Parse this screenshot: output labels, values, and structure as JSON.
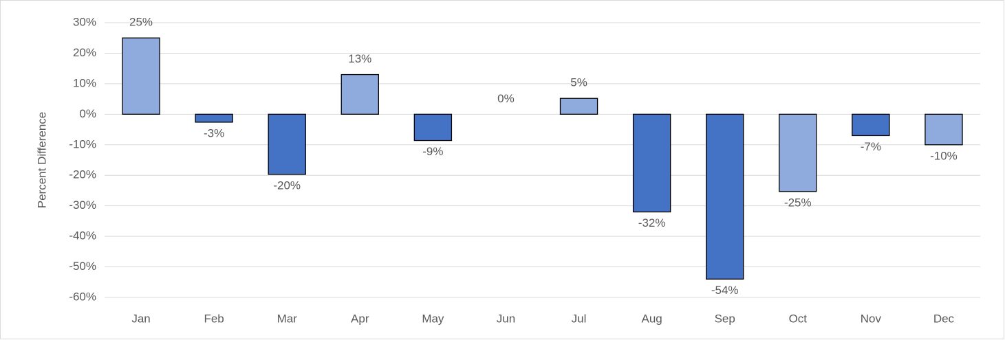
{
  "chart_data": {
    "type": "bar",
    "y_label": "Percent Difference",
    "categories": [
      "Jan",
      "Feb",
      "Mar",
      "Apr",
      "May",
      "Jun",
      "Jul",
      "Aug",
      "Sep",
      "Oct",
      "Nov",
      "Dec"
    ],
    "values": [
      25,
      -2.6,
      -19.7,
      13,
      -8.6,
      0,
      5.2,
      -32,
      -54,
      -25.3,
      -7,
      -10
    ],
    "value_labels": [
      "25%",
      "-3%",
      "-20%",
      "13%",
      "-9%",
      "0%",
      "5%",
      "-32%",
      "-54%",
      "-25%",
      "-7%",
      "-10%"
    ],
    "colors": [
      "#8faadc",
      "#4472c4",
      "#4472c4",
      "#8faadc",
      "#4472c4",
      "#8faadc",
      "#8faadc",
      "#4472c4",
      "#4472c4",
      "#8faadc",
      "#4472c4",
      "#8faadc"
    ],
    "ylim": [
      -60,
      30
    ],
    "yticks": [
      {
        "value": -60,
        "label": "-60%"
      },
      {
        "value": -50,
        "label": "-50%"
      },
      {
        "value": -40,
        "label": "-40%"
      },
      {
        "value": -30,
        "label": "-30%"
      },
      {
        "value": -20,
        "label": "-20%"
      },
      {
        "value": -10,
        "label": "-10%"
      },
      {
        "value": 0,
        "label": "0%"
      },
      {
        "value": 10,
        "label": "10%"
      },
      {
        "value": 20,
        "label": "20%"
      },
      {
        "value": 30,
        "label": "30%"
      }
    ],
    "grid": true
  }
}
